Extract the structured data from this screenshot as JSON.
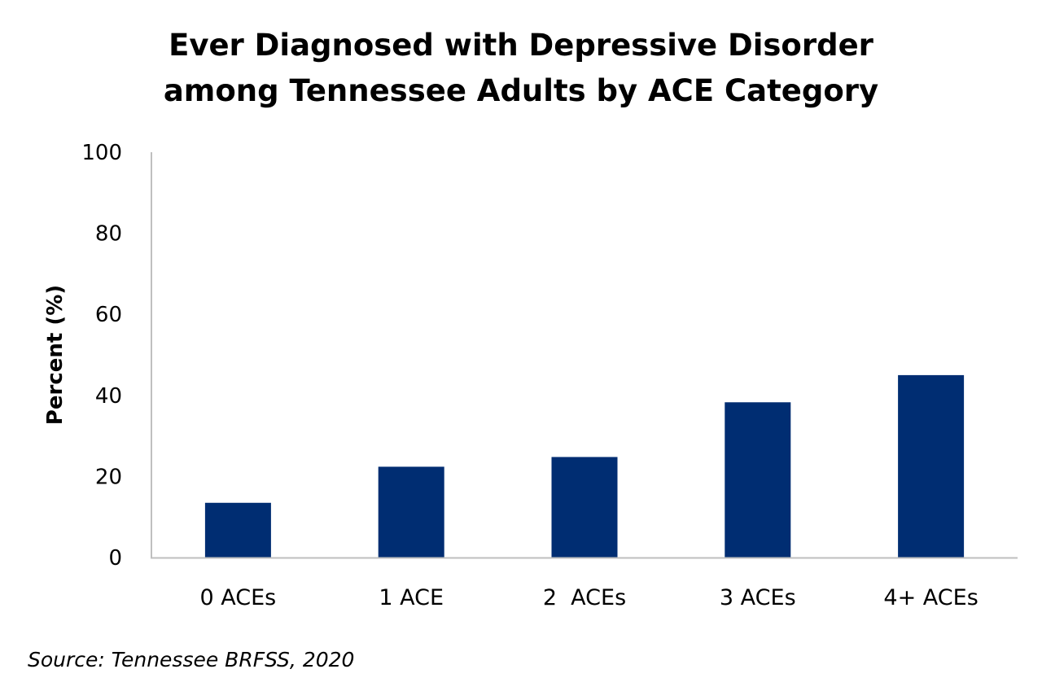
{
  "chart_data": {
    "type": "bar",
    "title_lines": [
      "Ever Diagnosed with Depressive Disorder",
      "among Tennessee Adults by ACE Category"
    ],
    "categories": [
      "0 ACEs",
      "1 ACE",
      "2  ACEs",
      "3 ACEs",
      "4+ ACEs"
    ],
    "values": [
      13.5,
      22.4,
      24.8,
      38.3,
      45.0
    ],
    "xlabel": "",
    "ylabel": "Percent (%)",
    "ylim": [
      0,
      100
    ],
    "yticks": [
      0,
      20,
      40,
      60,
      80,
      100
    ],
    "grid": false,
    "bar_color": "#002D72",
    "source": "Source: Tennessee BRFSS, 2020"
  }
}
